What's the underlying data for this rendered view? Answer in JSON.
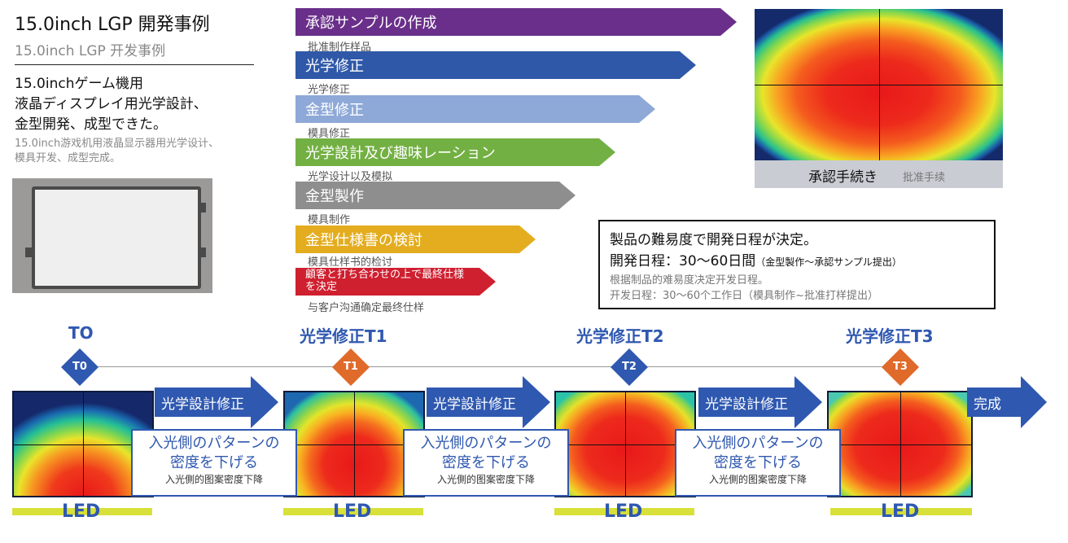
{
  "header": {
    "title_jp": "15.0inch LGP 開発事例",
    "title_cn": "15.0inch  LGP  开发事例",
    "desc_jp_1": "15.0inchゲーム機用",
    "desc_jp_2": "液晶ディスプレイ用光学設計、",
    "desc_jp_3": "金型開発、成型できた。",
    "desc_cn": "15.0inch游戏机用液晶显示器用光学设计、模具开发、成型完成。"
  },
  "steps": [
    {
      "label": "承認サンプルの作成",
      "sub": "批准制作样品",
      "color": "#6a2f8a"
    },
    {
      "label": "光学修正",
      "sub": "光学修正",
      "color": "#2f58a8"
    },
    {
      "label": "金型修正",
      "sub": "模具修正",
      "color": "#8ea9d8"
    },
    {
      "label": "光学設計及び趣味レーション",
      "sub": "光学设计以及模拟",
      "color": "#73b043"
    },
    {
      "label": "金型製作",
      "sub": "模具制作",
      "color": "#8e8e8e"
    },
    {
      "label": "金型仕様書の検討",
      "sub": "模具仕样书的检讨",
      "color": "#e4ad1f"
    },
    {
      "label": "顧客と打ち合わせの上で最終仕様を決定",
      "sub": "与客户沟通确定最终仕样",
      "color": "#cf2030"
    }
  ],
  "approval": {
    "label_jp": "承認手続き",
    "label_cn": "批准手续"
  },
  "info": {
    "line1": "製品の難易度で開発日程が決定。",
    "line2_main": "開発日程：30～60日間",
    "line2_note": "（金型製作～承認サンプル提出）",
    "line3": "根据制品的难易度决定开发日程。",
    "line4": "开发日程：30～60个工作日（模具制作~批准打样提出）"
  },
  "stages": [
    {
      "title": "TO",
      "badge": "T0",
      "badge_color": "#2f58b0"
    },
    {
      "title": "光学修正T1",
      "badge": "T1",
      "badge_color": "#e06a2a"
    },
    {
      "title": "光学修正T2",
      "badge": "T2",
      "badge_color": "#2f58b0"
    },
    {
      "title": "光学修正T3",
      "badge": "T3",
      "badge_color": "#e06a2a"
    }
  ],
  "flow": {
    "arrow_label": "光学設計修正",
    "done_label": "完成",
    "pattern_line1": "入光側のパターンの",
    "pattern_line2": "密度を下げる",
    "pattern_cn": "入光側的图案密度下降",
    "led_label": "LED"
  },
  "colors": {
    "accent_blue": "#2f58b0",
    "accent_orange": "#e06a2a",
    "led_yellow": "#d8e03a"
  }
}
